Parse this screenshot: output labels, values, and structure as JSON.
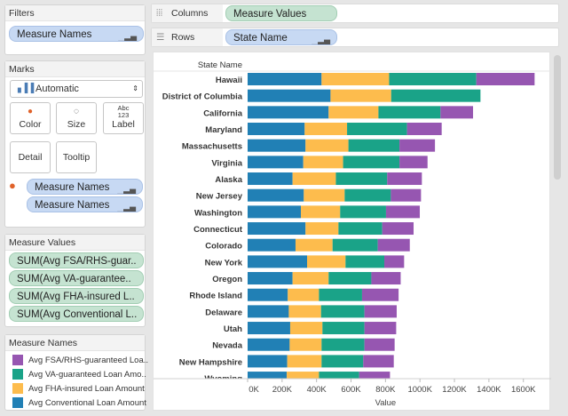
{
  "filters": {
    "title": "Filters",
    "pill": "Measure Names"
  },
  "marks": {
    "title": "Marks",
    "mark_type": "Automatic",
    "buttons": {
      "color": "Color",
      "size": "Size",
      "label": "Label",
      "label_icon": "Abc\n123",
      "detail": "Detail",
      "tooltip": "Tooltip"
    },
    "pills": [
      "Measure Names",
      "Measure Names"
    ]
  },
  "measure_values": {
    "title": "Measure Values",
    "pills": [
      "SUM(Avg FSA/RHS-guar..",
      "SUM(Avg VA-guarantee..",
      "SUM(Avg FHA-insured L..",
      "SUM(Avg Conventional L.."
    ]
  },
  "legend": {
    "title": "Measure Names",
    "items": [
      {
        "label": "Avg FSA/RHS-guaranteed Loa..",
        "color": "#9656b1"
      },
      {
        "label": "Avg VA-guaranteed Loan Amo..",
        "color": "#1aa388"
      },
      {
        "label": "Avg FHA-insured Loan Amount",
        "color": "#fdbc4d"
      },
      {
        "label": "Avg Conventional Loan Amount",
        "color": "#2180b5"
      }
    ]
  },
  "shelves": {
    "columns_label": "Columns",
    "columns_pill": "Measure Values",
    "rows_label": "Rows",
    "rows_pill": "State Name"
  },
  "chart_data": {
    "type": "bar",
    "orientation": "horizontal",
    "stacked": true,
    "row_header": "State Name",
    "xlabel": "Value",
    "xlim": [
      0,
      1750
    ],
    "x_ticks": [
      "0K",
      "200K",
      "400K",
      "600K",
      "800K",
      "1000K",
      "1200K",
      "1400K",
      "1600K"
    ],
    "units": "thousands",
    "categories": [
      "Hawaii",
      "District of Columbia",
      "California",
      "Maryland",
      "Massachusetts",
      "Virginia",
      "Alaska",
      "New Jersey",
      "Washington",
      "Connecticut",
      "Colorado",
      "New York",
      "Oregon",
      "Rhode Island",
      "Delaware",
      "Utah",
      "Nevada",
      "New Hampshire",
      "Wyoming"
    ],
    "series": [
      {
        "name": "Avg Conventional Loan Amount",
        "color": "#2180b5",
        "values": [
          429,
          481,
          470,
          331,
          336,
          323,
          261,
          326,
          309,
          336,
          278,
          345,
          261,
          233,
          239,
          247,
          244,
          230,
          227
        ]
      },
      {
        "name": "Avg FHA-insured Loan Amount",
        "color": "#fdbc4d",
        "values": [
          392,
          352,
          289,
          246,
          249,
          231,
          251,
          237,
          228,
          191,
          215,
          223,
          209,
          181,
          187,
          187,
          185,
          199,
          187
        ]
      },
      {
        "name": "Avg VA-guaranteed Loan Amount",
        "color": "#1aa388",
        "values": [
          506,
          518,
          360,
          348,
          296,
          327,
          298,
          268,
          266,
          254,
          262,
          225,
          248,
          250,
          252,
          244,
          249,
          242,
          233
        ]
      },
      {
        "name": "Avg FSA/RHS-guaranteed Loan Amount",
        "color": "#9656b1",
        "values": [
          338,
          0,
          189,
          201,
          206,
          163,
          201,
          175,
          196,
          182,
          186,
          115,
          170,
          212,
          187,
          184,
          175,
          177,
          179
        ]
      }
    ]
  }
}
